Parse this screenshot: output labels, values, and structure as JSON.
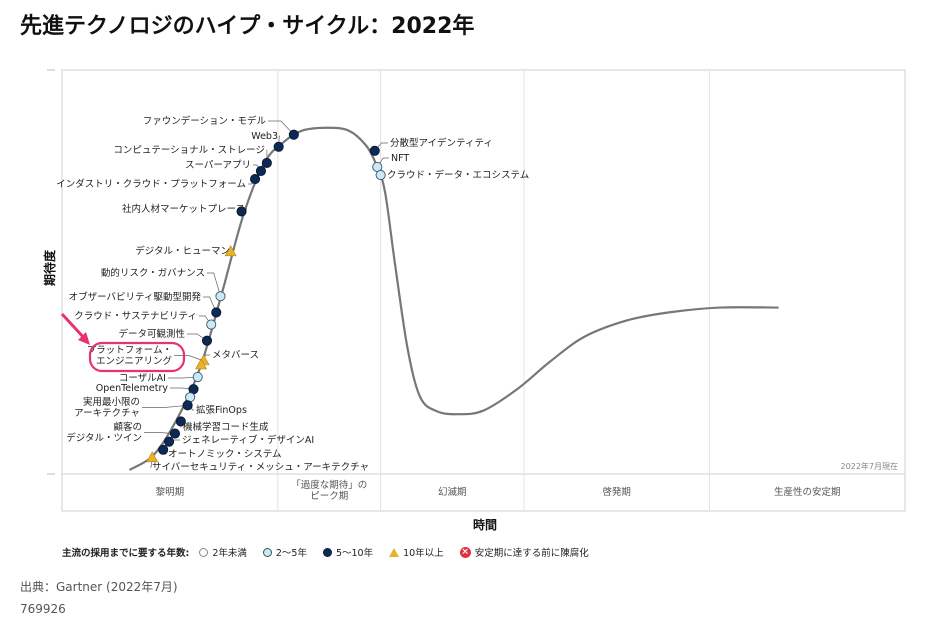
{
  "title": "先進テクノロジのハイプ・サイクル：2022年",
  "source": "出典：Gartner (2022年7月)",
  "doc_id": "769926",
  "legend": {
    "title": "主流の採用までに要する年数:",
    "items": [
      {
        "key": "w",
        "label": "2年未満"
      },
      {
        "key": "l",
        "label": "2～5年"
      },
      {
        "key": "d",
        "label": "5～10年"
      },
      {
        "key": "t",
        "label": "10年以上"
      },
      {
        "key": "x",
        "label": "安定期に達する前に陳腐化"
      }
    ]
  },
  "colors": {
    "curve": "#777777",
    "dark": "#0d2a57",
    "light": "#cde8f5",
    "triangle": "#e8b22c",
    "highlight": "#e8336e"
  },
  "chart_data": {
    "type": "line",
    "ylabel": "期待度",
    "xlabel": "時間",
    "date_note": "2022年7月現在",
    "phases": [
      "黎明期",
      "「過度な期待」の\nピーク期",
      "幻滅期",
      "啓発期",
      "生産性の安定期"
    ],
    "highlighted": "プラットフォーム・\nエンジニアリング",
    "technologies": [
      {
        "name": "ファウンデーション・モデル",
        "t": 0.275,
        "e": 0.84,
        "years": "d"
      },
      {
        "name": "Web3",
        "t": 0.257,
        "e": 0.81,
        "years": "d"
      },
      {
        "name": "コンピュテーショナル・ストレージ",
        "t": 0.243,
        "e": 0.77,
        "years": "d"
      },
      {
        "name": "スーパーアプリ",
        "t": 0.236,
        "e": 0.75,
        "years": "d"
      },
      {
        "name": "インダストリ・クラウド・プラットフォーム",
        "t": 0.229,
        "e": 0.73,
        "years": "d"
      },
      {
        "name": "社内人材マーケットプレース",
        "t": 0.213,
        "e": 0.65,
        "years": "d"
      },
      {
        "name": "デジタル・ヒューマン",
        "t": 0.2,
        "e": 0.55,
        "years": "t"
      },
      {
        "name": "動的リスク・ガバナンス",
        "t": 0.188,
        "e": 0.44,
        "years": "l"
      },
      {
        "name": "オブザーバビリティ駆動型開発",
        "t": 0.183,
        "e": 0.4,
        "years": "d"
      },
      {
        "name": "クラウド・サステナビリティ",
        "t": 0.177,
        "e": 0.37,
        "years": "l"
      },
      {
        "name": "データ可観測性",
        "t": 0.172,
        "e": 0.33,
        "years": "d"
      },
      {
        "name": "プラットフォーム・\nエンジニアリング",
        "t": 0.168,
        "e": 0.28,
        "years": "t"
      },
      {
        "name": "メタバース",
        "t": 0.165,
        "e": 0.27,
        "years": "t"
      },
      {
        "name": "コーザルAI",
        "t": 0.161,
        "e": 0.24,
        "years": "l"
      },
      {
        "name": "OpenTelemetry",
        "t": 0.156,
        "e": 0.21,
        "years": "d"
      },
      {
        "name": "拡張FinOps",
        "t": 0.152,
        "e": 0.19,
        "years": "l"
      },
      {
        "name": "実用最小限の\nアーキテクチャ",
        "t": 0.149,
        "e": 0.17,
        "years": "d"
      },
      {
        "name": "機械学習コード生成",
        "t": 0.141,
        "e": 0.13,
        "years": "d"
      },
      {
        "name": "顧客の\nデジタル・ツイン",
        "t": 0.134,
        "e": 0.1,
        "years": "d"
      },
      {
        "name": "ジェネレーティブ・デザインAI",
        "t": 0.127,
        "e": 0.08,
        "years": "d"
      },
      {
        "name": "オートノミック・システム",
        "t": 0.12,
        "e": 0.06,
        "years": "d"
      },
      {
        "name": "サイバーセキュリティ・メッシュ・アーキテクチャ",
        "t": 0.107,
        "e": 0.04,
        "years": "t"
      },
      {
        "name": "分散型アイデンティティ",
        "t": 0.371,
        "e": 0.8,
        "years": "d"
      },
      {
        "name": "NFT",
        "t": 0.374,
        "e": 0.76,
        "years": "l"
      },
      {
        "name": "クラウド・データ・エコシステム",
        "t": 0.378,
        "e": 0.74,
        "years": "l"
      }
    ]
  }
}
